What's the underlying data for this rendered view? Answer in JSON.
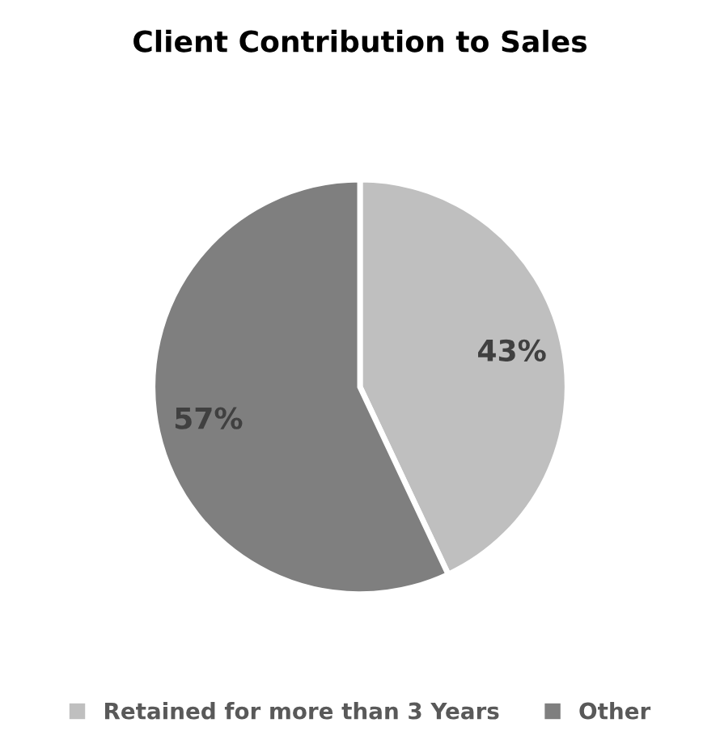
{
  "chart_data": {
    "type": "pie",
    "title": "Client Contribution to Sales",
    "categories": [
      "Retained for more than 3 Years",
      "Other"
    ],
    "values": [
      43,
      57
    ],
    "colors": [
      "#bfbfbf",
      "#7f7f7f"
    ],
    "value_labels": [
      "43%",
      "57%"
    ],
    "legend": "bottom"
  }
}
